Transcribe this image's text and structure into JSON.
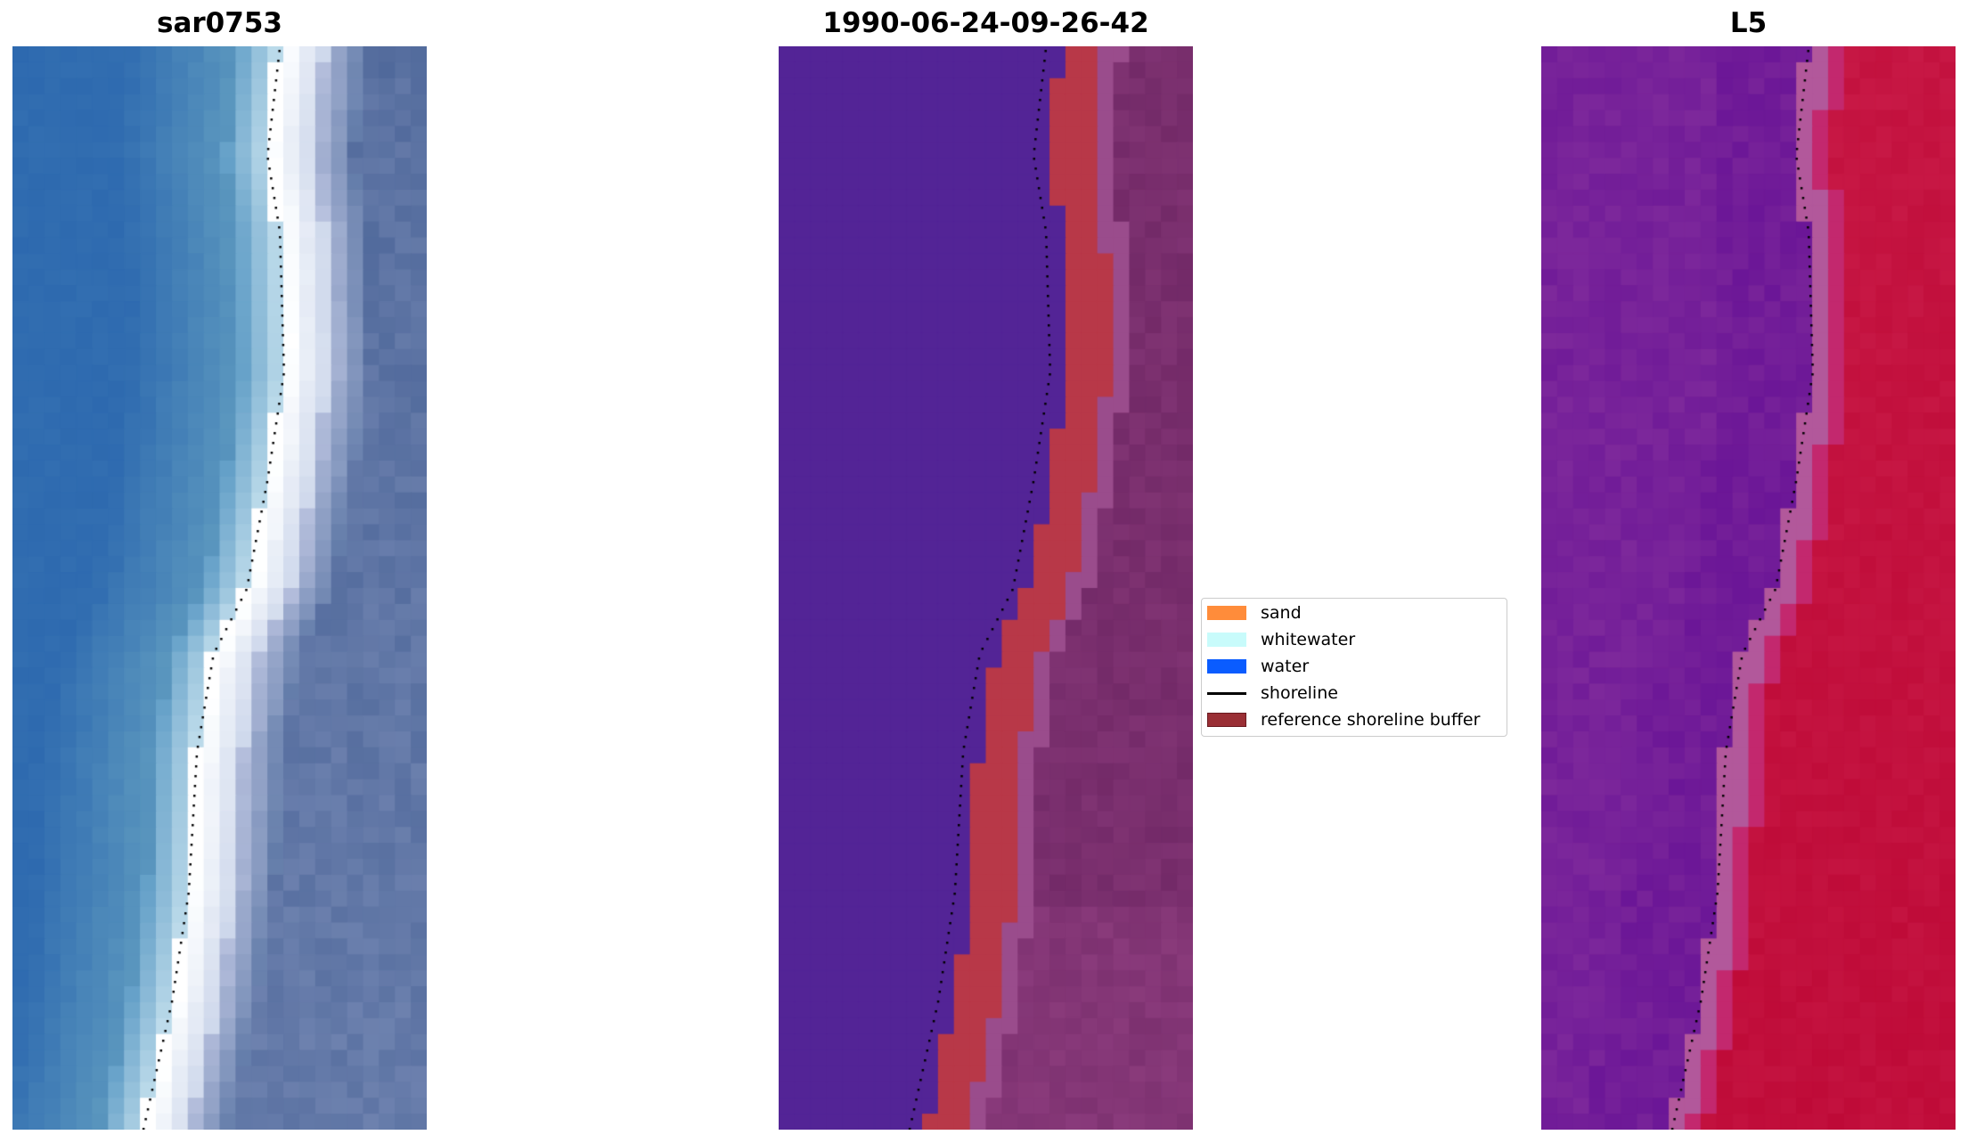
{
  "panels": [
    {
      "title": "sar0753",
      "kind": "rgb"
    },
    {
      "title": "1990-06-24-09-26-42",
      "kind": "classified"
    },
    {
      "title": "L5",
      "kind": "index"
    }
  ],
  "legend": {
    "items": [
      {
        "label": "sand",
        "color": "#ff8c3a",
        "type": "patch"
      },
      {
        "label": "whitewater",
        "color": "#c8fbfb",
        "type": "patch"
      },
      {
        "label": "water",
        "color": "#0a5cff",
        "type": "patch"
      },
      {
        "label": "shoreline",
        "color": "#000000",
        "type": "line"
      },
      {
        "label": "reference shoreline buffer",
        "color": "#9a2f35",
        "type": "patch-edged"
      }
    ]
  }
}
